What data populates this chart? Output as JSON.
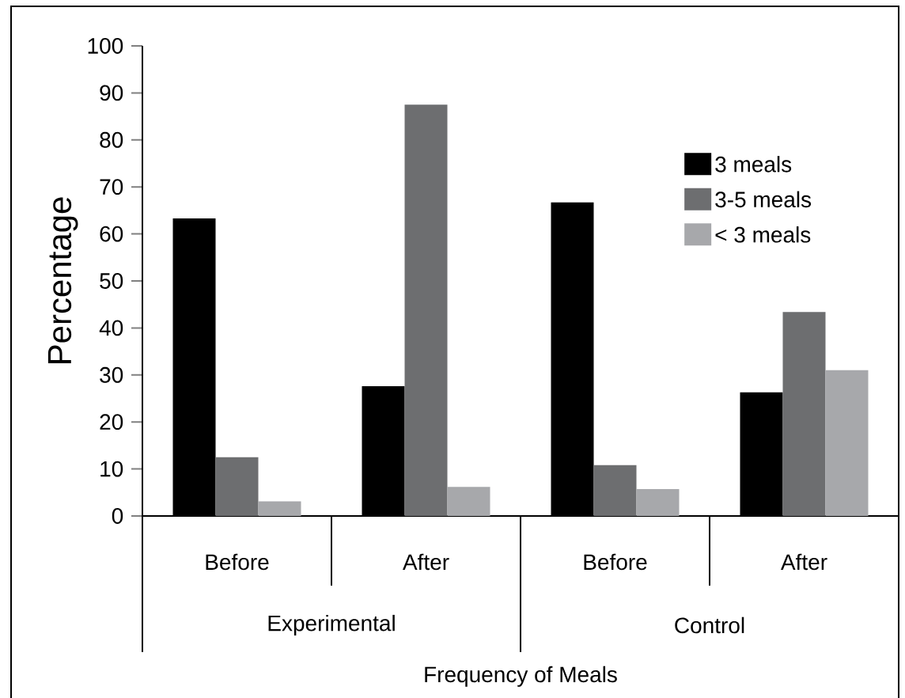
{
  "chart_data": {
    "type": "bar",
    "ylabel": "Percentage",
    "xlabel": "Frequency of Meals",
    "categories": [
      "Before",
      "After",
      "Before",
      "After"
    ],
    "annotations": [
      "Experimental",
      "Control"
    ],
    "series": [
      {
        "name": "3 meals",
        "color": "#000000",
        "values": [
          63.3,
          27.6,
          66.7,
          26.3
        ]
      },
      {
        "name": "3-5 meals",
        "color": "#6d6e70",
        "values": [
          12.5,
          87.5,
          10.8,
          43.4
        ]
      },
      {
        "name": "< 3 meals",
        "color": "#a7a8ab",
        "values": [
          3.1,
          6.2,
          5.7,
          31.0
        ]
      }
    ],
    "ylim": [
      0,
      100
    ],
    "yticks": [
      0,
      10,
      20,
      30,
      40,
      50,
      60,
      70,
      80,
      90,
      100
    ],
    "legend": "top right"
  }
}
